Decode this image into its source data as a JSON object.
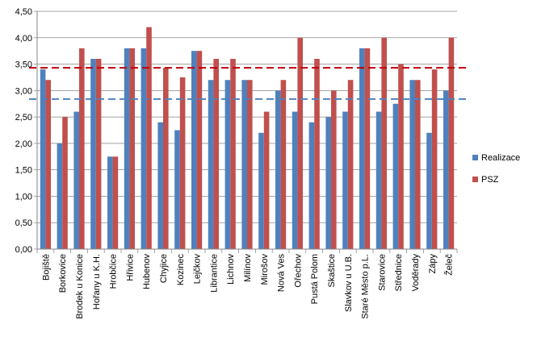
{
  "chart_data": {
    "type": "bar",
    "title": "",
    "xlabel": "",
    "ylabel": "",
    "ylim": [
      0,
      4.5
    ],
    "yticks": [
      "0,00",
      "0,50",
      "1,00",
      "1,50",
      "2,00",
      "2,50",
      "3,00",
      "3,50",
      "4,00",
      "4,50"
    ],
    "grid": true,
    "legend_position": "right",
    "categories": [
      "Bojiště",
      "Borkovice",
      "Brodek u Konice",
      "Hořany u K.H.",
      "Hrobčice",
      "Hřivice",
      "Hubenov",
      "Chyjice",
      "Kozinec",
      "Lejčkov",
      "Librantice",
      "Lichnov",
      "Milínov",
      "Mirošov",
      "Nová Ves",
      "Ořechov",
      "Pustá Polom",
      "Skaštice",
      "Slavkov u U.B.",
      "Staré Město p.L.",
      "Starovice",
      "Střednice",
      "Voděrady",
      "Zápy",
      "Želeč"
    ],
    "series": [
      {
        "name": "Realizace",
        "color": "#4f81bd",
        "values": [
          3.4,
          2.0,
          2.6,
          3.6,
          1.75,
          3.8,
          3.8,
          2.4,
          2.25,
          3.75,
          3.2,
          3.2,
          3.2,
          2.2,
          3.0,
          2.6,
          2.4,
          2.5,
          2.6,
          3.8,
          2.6,
          2.75,
          3.2,
          2.2,
          3.0
        ]
      },
      {
        "name": "PSZ",
        "color": "#c0504d",
        "values": [
          3.2,
          2.5,
          3.8,
          3.6,
          1.75,
          3.8,
          4.2,
          3.43,
          3.25,
          3.75,
          3.6,
          3.6,
          3.2,
          2.6,
          3.2,
          4.0,
          3.6,
          3.0,
          3.2,
          3.8,
          4.0,
          3.5,
          3.2,
          3.4,
          4.0
        ]
      }
    ],
    "reference_lines": [
      {
        "series": "Realizace",
        "value": 2.84,
        "color": "#4f81bd",
        "style": "dashed"
      },
      {
        "series": "PSZ",
        "value": 3.43,
        "color": "#c0000b",
        "style": "dashed"
      }
    ]
  }
}
